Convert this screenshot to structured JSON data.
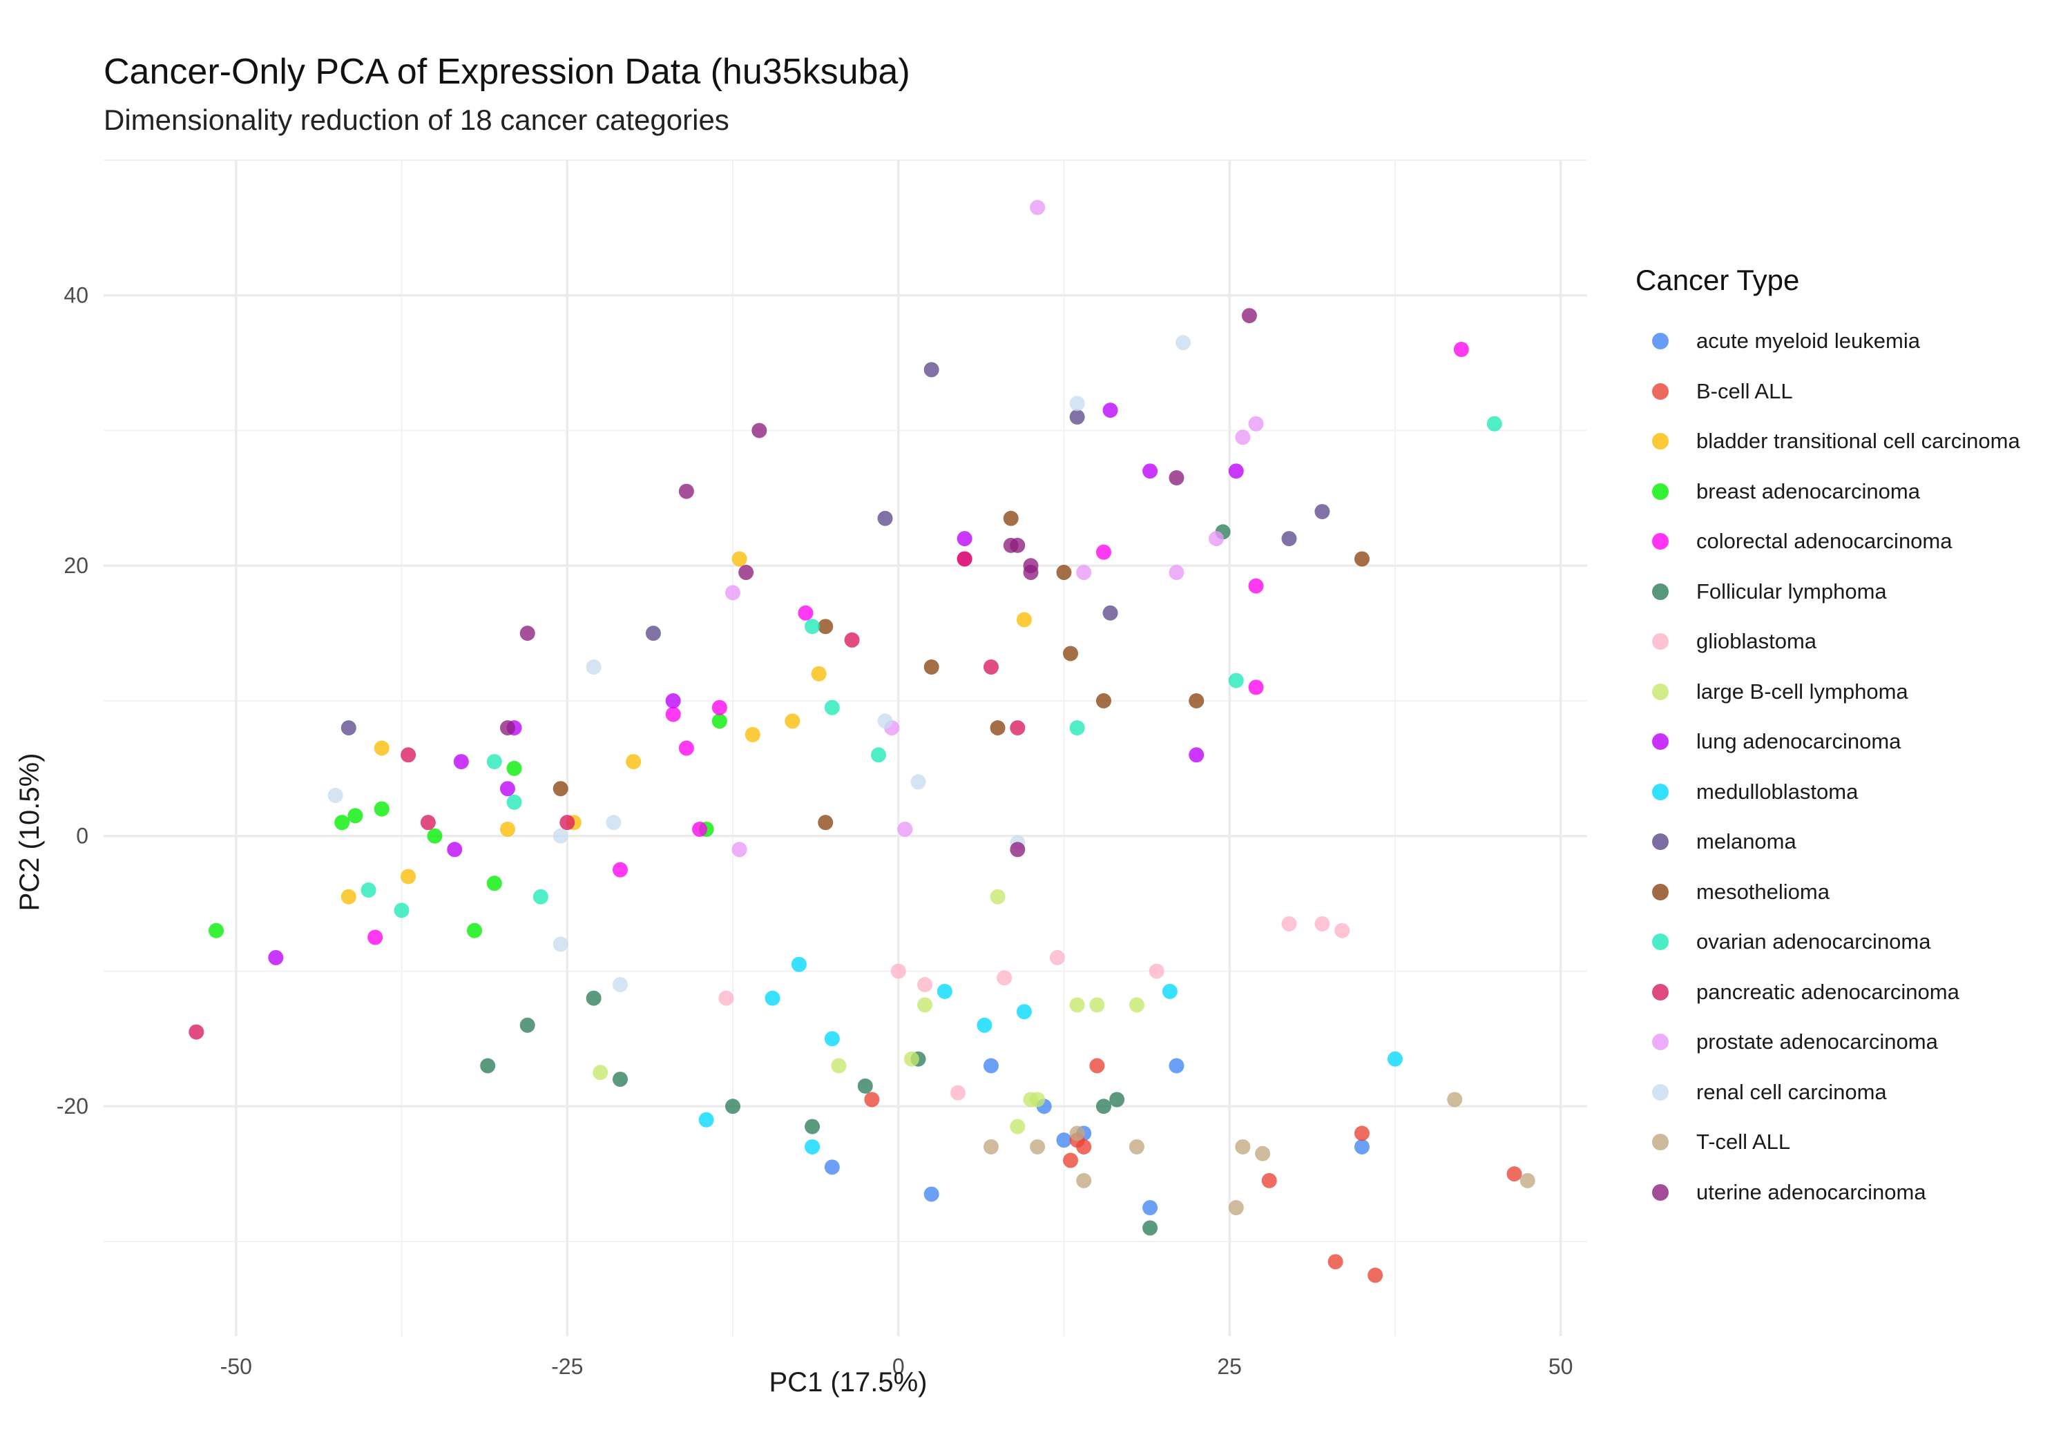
{
  "chart_data": {
    "type": "scatter",
    "title": "Cancer-Only PCA of Expression Data (hu35ksuba)",
    "subtitle": "Dimensionality reduction of 18 cancer categories",
    "xlabel": "PC1 (17.5%)",
    "ylabel": "PC2 (10.5%)",
    "xlim": [
      -60,
      52
    ],
    "ylim": [
      -37,
      50
    ],
    "x_ticks": [
      -50,
      -25,
      0,
      25,
      50
    ],
    "x_tick_labels": [
      "-50",
      "-25",
      "0",
      "25",
      "50"
    ],
    "y_ticks": [
      -20,
      0,
      20,
      40
    ],
    "y_tick_labels": [
      "-20",
      "0",
      "20",
      "40"
    ],
    "grid": true,
    "legend_title": "Cancer Type",
    "legend_position": "right",
    "series": [
      {
        "name": "acute myeloid leukemia",
        "color": "#4285f4",
        "points": [
          [
            -5,
            -24.5
          ],
          [
            2.5,
            -26.5
          ],
          [
            7,
            -17
          ],
          [
            11,
            -20
          ],
          [
            12.5,
            -22.5
          ],
          [
            14,
            -22
          ],
          [
            21,
            -17
          ],
          [
            19,
            -27.5
          ],
          [
            35,
            -23
          ]
        ]
      },
      {
        "name": "B-cell ALL",
        "color": "#ea4335",
        "points": [
          [
            -2,
            -19.5
          ],
          [
            13,
            -24
          ],
          [
            13.5,
            -22.5
          ],
          [
            14,
            -23
          ],
          [
            15,
            -17
          ],
          [
            28,
            -25.5
          ],
          [
            33,
            -31.5
          ],
          [
            35,
            -22
          ],
          [
            36,
            -32.5
          ],
          [
            46.5,
            -25
          ]
        ]
      },
      {
        "name": "bladder transitional cell carcinoma",
        "color": "#fbbc04",
        "points": [
          [
            -39,
            6.5
          ],
          [
            -41.5,
            -4.5
          ],
          [
            -37,
            -3
          ],
          [
            -29.5,
            0.5
          ],
          [
            -24.5,
            1
          ],
          [
            -20,
            5.5
          ],
          [
            -12,
            20.5
          ],
          [
            -11,
            7.5
          ],
          [
            -8,
            8.5
          ],
          [
            -6,
            12
          ],
          [
            9.5,
            16
          ]
        ]
      },
      {
        "name": "breast adenocarcinoma",
        "color": "#00ee00",
        "points": [
          [
            -51.5,
            -7
          ],
          [
            -42,
            1
          ],
          [
            -41,
            1.5
          ],
          [
            -39,
            2
          ],
          [
            -35,
            0
          ],
          [
            -29,
            5
          ],
          [
            -30.5,
            -3.5
          ],
          [
            -32,
            -7
          ],
          [
            -14.5,
            0.5
          ],
          [
            -13.5,
            8.5
          ]
        ]
      },
      {
        "name": "colorectal adenocarcinoma",
        "color": "#ff00ee",
        "points": [
          [
            -39.5,
            -7.5
          ],
          [
            -21,
            -2.5
          ],
          [
            -17,
            9
          ],
          [
            -16,
            6.5
          ],
          [
            -13.5,
            9.5
          ],
          [
            -15,
            0.5
          ],
          [
            -7,
            16.5
          ],
          [
            5,
            20.5
          ],
          [
            15.5,
            21
          ],
          [
            27,
            18.5
          ],
          [
            27,
            11
          ],
          [
            42.5,
            36
          ]
        ]
      },
      {
        "name": "Follicular lymphoma",
        "color": "#2e7d5b",
        "points": [
          [
            -23,
            -12
          ],
          [
            -28,
            -14
          ],
          [
            -31,
            -17
          ],
          [
            -21,
            -18
          ],
          [
            -12.5,
            -20
          ],
          [
            -6.5,
            -21.5
          ],
          [
            -2.5,
            -18.5
          ],
          [
            1.5,
            -16.5
          ],
          [
            15.5,
            -20
          ],
          [
            16.5,
            -19.5
          ],
          [
            19,
            -29
          ],
          [
            24.5,
            22.5
          ]
        ]
      },
      {
        "name": "glioblastoma",
        "color": "#ffb3c8",
        "points": [
          [
            -13,
            -12
          ],
          [
            0,
            -10
          ],
          [
            2,
            -11
          ],
          [
            4.5,
            -19
          ],
          [
            8,
            -10.5
          ],
          [
            12,
            -9
          ],
          [
            19.5,
            -10
          ],
          [
            29.5,
            -6.5
          ],
          [
            32,
            -6.5
          ],
          [
            33.5,
            -7
          ]
        ]
      },
      {
        "name": "large B-cell lymphoma",
        "color": "#c5e86c",
        "points": [
          [
            -22.5,
            -17.5
          ],
          [
            -4.5,
            -17
          ],
          [
            1,
            -16.5
          ],
          [
            2,
            -12.5
          ],
          [
            7.5,
            -4.5
          ],
          [
            9,
            -21.5
          ],
          [
            10,
            -19.5
          ],
          [
            10.5,
            -19.5
          ],
          [
            13.5,
            -12.5
          ],
          [
            15,
            -12.5
          ],
          [
            18,
            -12.5
          ]
        ]
      },
      {
        "name": "lung adenocarcinoma",
        "color": "#bb00ff",
        "points": [
          [
            -47,
            -9
          ],
          [
            -33.5,
            -1
          ],
          [
            -33,
            5.5
          ],
          [
            -29.5,
            3.5
          ],
          [
            -29,
            8
          ],
          [
            -17,
            10
          ],
          [
            5,
            22
          ],
          [
            16,
            31.5
          ],
          [
            19,
            27
          ],
          [
            22.5,
            6
          ],
          [
            25.5,
            27
          ]
        ]
      },
      {
        "name": "medulloblastoma",
        "color": "#00d8ff",
        "points": [
          [
            -14.5,
            -21
          ],
          [
            -9.5,
            -12
          ],
          [
            -7.5,
            -9.5
          ],
          [
            -6.5,
            -23
          ],
          [
            -5,
            -15
          ],
          [
            3.5,
            -11.5
          ],
          [
            6.5,
            -14
          ],
          [
            9.5,
            -13
          ],
          [
            20.5,
            -11.5
          ],
          [
            37.5,
            -16.5
          ]
        ]
      },
      {
        "name": "melanoma",
        "color": "#5c4a8a",
        "points": [
          [
            -41.5,
            8
          ],
          [
            -18.5,
            15
          ],
          [
            -1,
            23.5
          ],
          [
            2.5,
            34.5
          ],
          [
            13.5,
            31
          ],
          [
            16,
            16.5
          ],
          [
            29.5,
            22
          ],
          [
            32,
            24
          ]
        ]
      },
      {
        "name": "mesothelioma",
        "color": "#8b4513",
        "points": [
          [
            -25.5,
            3.5
          ],
          [
            -5.5,
            15.5
          ],
          [
            -5.5,
            1
          ],
          [
            2.5,
            12.5
          ],
          [
            7.5,
            8
          ],
          [
            8.5,
            23.5
          ],
          [
            12.5,
            19.5
          ],
          [
            13,
            13.5
          ],
          [
            15.5,
            10
          ],
          [
            22.5,
            10
          ],
          [
            35,
            20.5
          ]
        ]
      },
      {
        "name": "ovarian adenocarcinoma",
        "color": "#1de9b6",
        "points": [
          [
            -40,
            -4
          ],
          [
            -37.5,
            -5.5
          ],
          [
            -30.5,
            5.5
          ],
          [
            -29,
            2.5
          ],
          [
            -27,
            -4.5
          ],
          [
            -6.5,
            15.5
          ],
          [
            -5,
            9.5
          ],
          [
            -1.5,
            6
          ],
          [
            13.5,
            8
          ],
          [
            25.5,
            11.5
          ],
          [
            45,
            30.5
          ]
        ]
      },
      {
        "name": "pancreatic adenocarcinoma",
        "color": "#d81b60",
        "points": [
          [
            -53,
            -14.5
          ],
          [
            -37,
            6
          ],
          [
            -35.5,
            1
          ],
          [
            -25,
            1
          ],
          [
            -3.5,
            14.5
          ],
          [
            5,
            20.5
          ],
          [
            7,
            12.5
          ],
          [
            9,
            8
          ]
        ]
      },
      {
        "name": "prostate adenocarcinoma",
        "color": "#e999f9",
        "points": [
          [
            -12,
            -1
          ],
          [
            -12.5,
            18
          ],
          [
            -0.5,
            8
          ],
          [
            0.5,
            0.5
          ],
          [
            10.5,
            46.5
          ],
          [
            14,
            19.5
          ],
          [
            21,
            19.5
          ],
          [
            24,
            22
          ],
          [
            26,
            29.5
          ],
          [
            27,
            30.5
          ]
        ]
      },
      {
        "name": "renal cell carcinoma",
        "color": "#c9dcf0",
        "points": [
          [
            -42.5,
            3
          ],
          [
            -25.5,
            -8
          ],
          [
            -23,
            12.5
          ],
          [
            -25.5,
            0
          ],
          [
            -21.5,
            1
          ],
          [
            -21,
            -11
          ],
          [
            -1,
            8.5
          ],
          [
            1.5,
            4
          ],
          [
            9,
            -0.5
          ],
          [
            13.5,
            32
          ],
          [
            21.5,
            36.5
          ]
        ]
      },
      {
        "name": "T-cell ALL",
        "color": "#c4a882",
        "points": [
          [
            7,
            -23
          ],
          [
            10.5,
            -23
          ],
          [
            13.5,
            -22
          ],
          [
            14,
            -25.5
          ],
          [
            18,
            -23
          ],
          [
            25.5,
            -27.5
          ],
          [
            26,
            -23
          ],
          [
            27.5,
            -23.5
          ],
          [
            42,
            -19.5
          ],
          [
            47.5,
            -25.5
          ]
        ]
      },
      {
        "name": "uterine adenocarcinoma",
        "color": "#8e1f7d",
        "points": [
          [
            -29.5,
            8
          ],
          [
            -28,
            15
          ],
          [
            -16,
            25.5
          ],
          [
            -11.5,
            19.5
          ],
          [
            -10.5,
            30
          ],
          [
            8.5,
            21.5
          ],
          [
            9,
            21.5
          ],
          [
            9,
            -1
          ],
          [
            10,
            19.5
          ],
          [
            10,
            20
          ],
          [
            21,
            26.5
          ],
          [
            26.5,
            38.5
          ]
        ]
      }
    ]
  }
}
